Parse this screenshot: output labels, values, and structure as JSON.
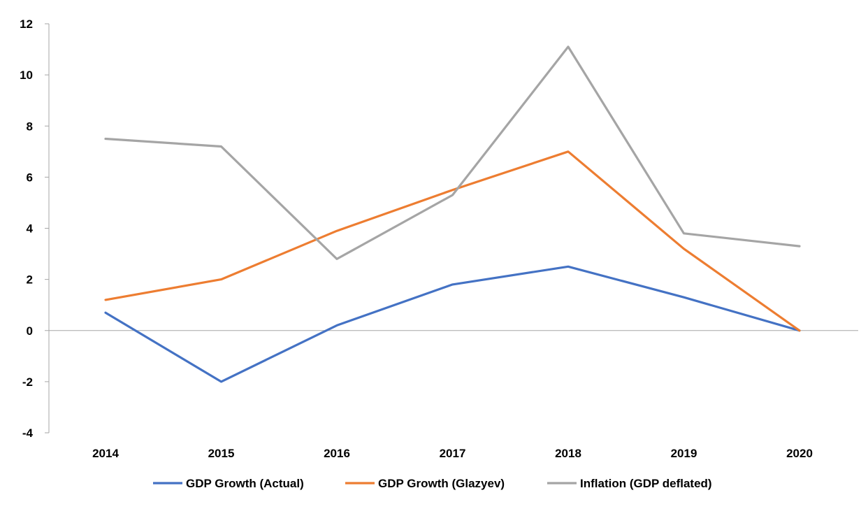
{
  "chart_data": {
    "type": "line",
    "categories": [
      "2014",
      "2015",
      "2016",
      "2017",
      "2018",
      "2019",
      "2020"
    ],
    "series": [
      {
        "name": "GDP Growth (Actual)",
        "color": "#4472C4",
        "values": [
          0.7,
          -2.0,
          0.2,
          1.8,
          2.5,
          1.3,
          0.0
        ]
      },
      {
        "name": "GDP Growth (Glazyev)",
        "color": "#ED7D31",
        "values": [
          1.2,
          2.0,
          3.9,
          5.5,
          7.0,
          3.2,
          0.0
        ]
      },
      {
        "name": "Inflation (GDP deflated)",
        "color": "#A5A5A5",
        "values": [
          7.5,
          7.2,
          2.8,
          5.3,
          11.1,
          3.8,
          3.3
        ]
      }
    ],
    "yticks": [
      "12",
      "10",
      "8",
      "6",
      "4",
      "2",
      "0",
      "-2",
      "-4"
    ],
    "ylim": [
      -4,
      12
    ],
    "grid": false,
    "legend_position": "bottom"
  }
}
